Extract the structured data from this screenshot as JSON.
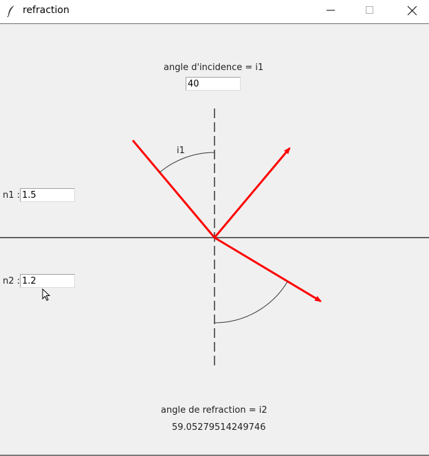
{
  "window": {
    "title": "refraction"
  },
  "incidence": {
    "label": "angle d'incidence = i1",
    "value": "40"
  },
  "n1": {
    "label": "n1 :",
    "value": "1.5"
  },
  "n2": {
    "label": "n2 :",
    "value": "1.2"
  },
  "diagram": {
    "angle_label": "i1",
    "incident_angle_deg": 40,
    "refracted_angle_deg": 59.05279514249746,
    "ray_color": "#ff0000"
  },
  "refraction": {
    "label": "angle de refraction = i2",
    "value": "59.05279514249746"
  },
  "icons": {
    "app": "feather-icon",
    "minimize": "minimize-icon",
    "maximize": "maximize-icon",
    "close": "close-icon"
  }
}
